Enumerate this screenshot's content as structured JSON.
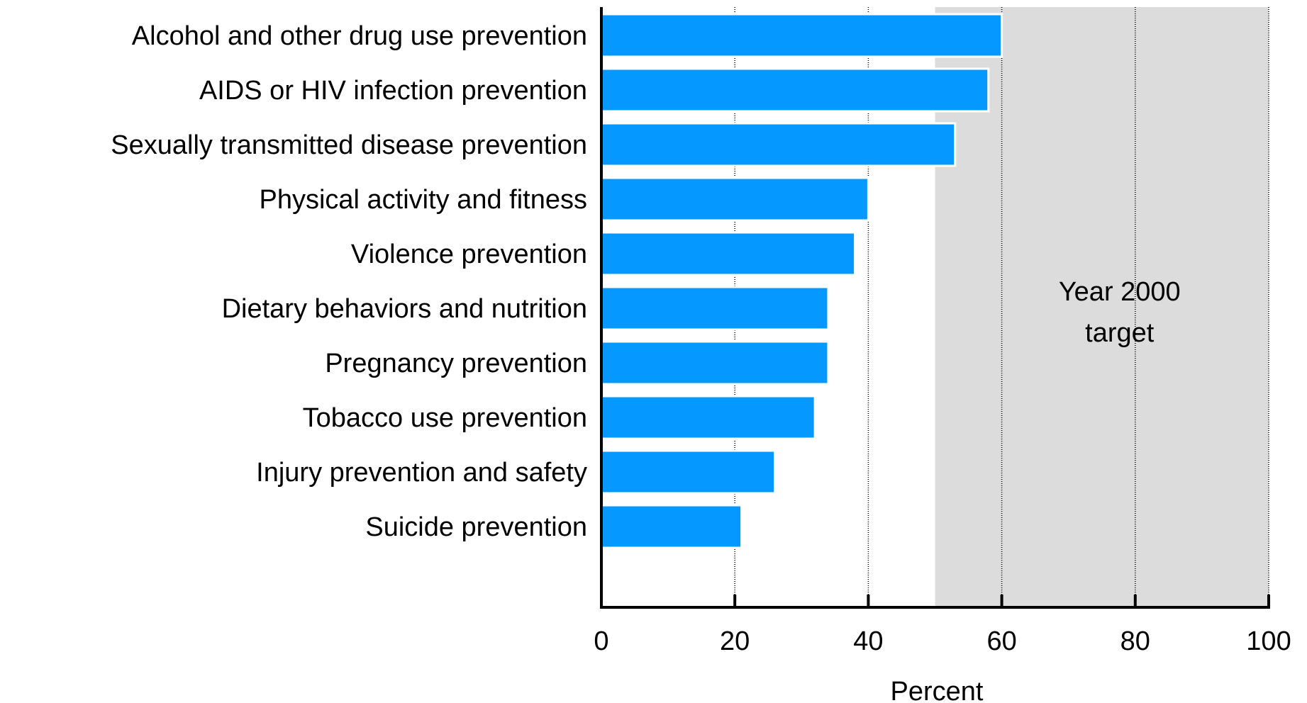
{
  "chart_data": {
    "type": "bar",
    "orientation": "horizontal",
    "categories": [
      "Alcohol and other drug use prevention",
      "AIDS or HIV infection prevention",
      "Sexually transmitted disease prevention",
      "Physical activity and fitness",
      "Violence prevention",
      "Dietary behaviors and nutrition",
      "Pregnancy prevention",
      "Tobacco use prevention",
      "Injury prevention and safety",
      "Suicide prevention"
    ],
    "values": [
      60,
      58,
      53,
      40,
      38,
      34,
      34,
      32,
      26,
      21
    ],
    "xlabel": "Percent",
    "xlim": [
      0,
      100
    ],
    "xticks": [
      "0",
      "20",
      "40",
      "60",
      "80",
      "100"
    ],
    "grid": "vertical dotted lines at ticks",
    "target_region": {
      "start": 50,
      "end": 100,
      "label_lines": [
        "Year 2000",
        "target"
      ]
    },
    "colors": {
      "bar": "#0599FF",
      "target_shade": "#DCDCDC",
      "axis": "#000000"
    }
  }
}
